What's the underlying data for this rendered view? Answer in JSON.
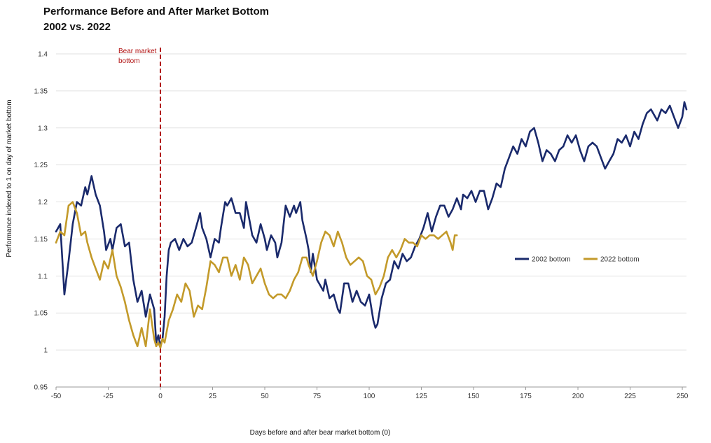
{
  "chart_data": {
    "type": "line",
    "title": "Performance  Before and After Market Bottom",
    "subtitle": "2002 vs. 2022",
    "xlabel": "Days before and after bear market bottom  (0)",
    "ylabel": "Performance indexed to  1 on day of market bottom",
    "xlim": [
      -50,
      252
    ],
    "ylim": [
      0.95,
      1.4
    ],
    "xticks": [
      -50,
      -25,
      0,
      25,
      50,
      75,
      100,
      125,
      150,
      175,
      200,
      225,
      250
    ],
    "yticks": [
      0.95,
      1,
      1.05,
      1.1,
      1.15,
      1.2,
      1.25,
      1.3,
      1.35,
      1.4
    ],
    "ytick_labels": [
      "0.95",
      "1",
      "1.05",
      "1.1",
      "1.15",
      "1.2",
      "1.25",
      "1.3",
      "1.35",
      "1.4"
    ],
    "grid": "horizontal",
    "legend_position": "right",
    "annotation": {
      "x": 0,
      "text_line1": "Bear market",
      "text_line2": "bottom",
      "color": "#b01010"
    },
    "series": [
      {
        "name": "2002 bottom",
        "color": "#1a2a6c",
        "points": [
          [
            -50,
            1.16
          ],
          [
            -48,
            1.17
          ],
          [
            -46,
            1.075
          ],
          [
            -44,
            1.12
          ],
          [
            -42,
            1.17
          ],
          [
            -40,
            1.2
          ],
          [
            -38,
            1.195
          ],
          [
            -36,
            1.22
          ],
          [
            -35,
            1.21
          ],
          [
            -33,
            1.235
          ],
          [
            -31,
            1.21
          ],
          [
            -29,
            1.195
          ],
          [
            -27,
            1.16
          ],
          [
            -26,
            1.135
          ],
          [
            -24,
            1.15
          ],
          [
            -23,
            1.135
          ],
          [
            -21,
            1.165
          ],
          [
            -19,
            1.17
          ],
          [
            -17,
            1.14
          ],
          [
            -15,
            1.145
          ],
          [
            -13,
            1.095
          ],
          [
            -11,
            1.065
          ],
          [
            -9,
            1.08
          ],
          [
            -7,
            1.045
          ],
          [
            -5,
            1.075
          ],
          [
            -3,
            1.055
          ],
          [
            -2,
            1.01
          ],
          [
            -1,
            1.02
          ],
          [
            0,
            1.005
          ],
          [
            1,
            1.015
          ],
          [
            2,
            1.045
          ],
          [
            3,
            1.1
          ],
          [
            4,
            1.135
          ],
          [
            5,
            1.145
          ],
          [
            7,
            1.15
          ],
          [
            9,
            1.135
          ],
          [
            11,
            1.15
          ],
          [
            13,
            1.14
          ],
          [
            15,
            1.145
          ],
          [
            17,
            1.165
          ],
          [
            19,
            1.185
          ],
          [
            20,
            1.165
          ],
          [
            22,
            1.15
          ],
          [
            24,
            1.125
          ],
          [
            26,
            1.15
          ],
          [
            28,
            1.145
          ],
          [
            29,
            1.165
          ],
          [
            31,
            1.2
          ],
          [
            32,
            1.195
          ],
          [
            34,
            1.205
          ],
          [
            36,
            1.185
          ],
          [
            38,
            1.185
          ],
          [
            40,
            1.165
          ],
          [
            41,
            1.2
          ],
          [
            43,
            1.17
          ],
          [
            44,
            1.155
          ],
          [
            46,
            1.145
          ],
          [
            48,
            1.17
          ],
          [
            50,
            1.15
          ],
          [
            51,
            1.135
          ],
          [
            53,
            1.155
          ],
          [
            55,
            1.145
          ],
          [
            56,
            1.125
          ],
          [
            58,
            1.145
          ],
          [
            60,
            1.195
          ],
          [
            62,
            1.18
          ],
          [
            64,
            1.195
          ],
          [
            65,
            1.185
          ],
          [
            67,
            1.2
          ],
          [
            68,
            1.175
          ],
          [
            70,
            1.15
          ],
          [
            71,
            1.135
          ],
          [
            72,
            1.105
          ],
          [
            73,
            1.13
          ],
          [
            75,
            1.095
          ],
          [
            76,
            1.09
          ],
          [
            78,
            1.08
          ],
          [
            79,
            1.095
          ],
          [
            81,
            1.07
          ],
          [
            83,
            1.075
          ],
          [
            85,
            1.055
          ],
          [
            86,
            1.05
          ],
          [
            88,
            1.09
          ],
          [
            90,
            1.09
          ],
          [
            92,
            1.065
          ],
          [
            94,
            1.08
          ],
          [
            96,
            1.065
          ],
          [
            98,
            1.06
          ],
          [
            100,
            1.075
          ],
          [
            102,
            1.04
          ],
          [
            103,
            1.03
          ],
          [
            104,
            1.035
          ],
          [
            106,
            1.07
          ],
          [
            108,
            1.09
          ],
          [
            110,
            1.095
          ],
          [
            112,
            1.12
          ],
          [
            114,
            1.11
          ],
          [
            116,
            1.13
          ],
          [
            118,
            1.12
          ],
          [
            120,
            1.125
          ],
          [
            122,
            1.14
          ],
          [
            124,
            1.15
          ],
          [
            126,
            1.165
          ],
          [
            128,
            1.185
          ],
          [
            130,
            1.16
          ],
          [
            132,
            1.18
          ],
          [
            134,
            1.195
          ],
          [
            136,
            1.195
          ],
          [
            138,
            1.18
          ],
          [
            140,
            1.19
          ],
          [
            142,
            1.205
          ],
          [
            144,
            1.19
          ],
          [
            145,
            1.21
          ],
          [
            147,
            1.205
          ],
          [
            149,
            1.215
          ],
          [
            151,
            1.2
          ],
          [
            153,
            1.215
          ],
          [
            155,
            1.215
          ],
          [
            157,
            1.19
          ],
          [
            159,
            1.205
          ],
          [
            161,
            1.225
          ],
          [
            163,
            1.22
          ],
          [
            165,
            1.245
          ],
          [
            167,
            1.26
          ],
          [
            169,
            1.275
          ],
          [
            171,
            1.265
          ],
          [
            173,
            1.285
          ],
          [
            175,
            1.275
          ],
          [
            177,
            1.295
          ],
          [
            179,
            1.3
          ],
          [
            181,
            1.28
          ],
          [
            183,
            1.255
          ],
          [
            185,
            1.27
          ],
          [
            187,
            1.265
          ],
          [
            189,
            1.255
          ],
          [
            191,
            1.27
          ],
          [
            193,
            1.275
          ],
          [
            195,
            1.29
          ],
          [
            197,
            1.28
          ],
          [
            199,
            1.29
          ],
          [
            201,
            1.27
          ],
          [
            203,
            1.255
          ],
          [
            205,
            1.275
          ],
          [
            207,
            1.28
          ],
          [
            209,
            1.275
          ],
          [
            211,
            1.26
          ],
          [
            213,
            1.245
          ],
          [
            215,
            1.255
          ],
          [
            217,
            1.265
          ],
          [
            219,
            1.285
          ],
          [
            221,
            1.28
          ],
          [
            223,
            1.29
          ],
          [
            225,
            1.275
          ],
          [
            227,
            1.295
          ],
          [
            229,
            1.285
          ],
          [
            231,
            1.305
          ],
          [
            233,
            1.32
          ],
          [
            235,
            1.325
          ],
          [
            237,
            1.315
          ],
          [
            238,
            1.31
          ],
          [
            240,
            1.325
          ],
          [
            242,
            1.32
          ],
          [
            244,
            1.33
          ],
          [
            246,
            1.315
          ],
          [
            248,
            1.3
          ],
          [
            250,
            1.315
          ],
          [
            251,
            1.335
          ],
          [
            252,
            1.325
          ]
        ]
      },
      {
        "name": "2022 bottom",
        "color": "#c39a2a",
        "points": [
          [
            -50,
            1.145
          ],
          [
            -48,
            1.16
          ],
          [
            -46,
            1.155
          ],
          [
            -44,
            1.195
          ],
          [
            -42,
            1.2
          ],
          [
            -40,
            1.185
          ],
          [
            -38,
            1.155
          ],
          [
            -36,
            1.16
          ],
          [
            -35,
            1.145
          ],
          [
            -33,
            1.125
          ],
          [
            -31,
            1.11
          ],
          [
            -29,
            1.095
          ],
          [
            -27,
            1.12
          ],
          [
            -25,
            1.11
          ],
          [
            -23,
            1.135
          ],
          [
            -21,
            1.1
          ],
          [
            -19,
            1.085
          ],
          [
            -17,
            1.065
          ],
          [
            -15,
            1.04
          ],
          [
            -13,
            1.02
          ],
          [
            -11,
            1.005
          ],
          [
            -9,
            1.03
          ],
          [
            -7,
            1.005
          ],
          [
            -5,
            1.055
          ],
          [
            -4,
            1.035
          ],
          [
            -3,
            1.015
          ],
          [
            -2,
            1.005
          ],
          [
            -1,
            1.01
          ],
          [
            0,
            1.003
          ],
          [
            1,
            1.015
          ],
          [
            2,
            1.01
          ],
          [
            4,
            1.04
          ],
          [
            6,
            1.055
          ],
          [
            8,
            1.075
          ],
          [
            10,
            1.065
          ],
          [
            12,
            1.09
          ],
          [
            14,
            1.08
          ],
          [
            16,
            1.045
          ],
          [
            18,
            1.06
          ],
          [
            20,
            1.055
          ],
          [
            22,
            1.085
          ],
          [
            24,
            1.12
          ],
          [
            26,
            1.115
          ],
          [
            28,
            1.105
          ],
          [
            30,
            1.125
          ],
          [
            32,
            1.125
          ],
          [
            34,
            1.1
          ],
          [
            36,
            1.115
          ],
          [
            38,
            1.095
          ],
          [
            40,
            1.125
          ],
          [
            42,
            1.115
          ],
          [
            44,
            1.09
          ],
          [
            46,
            1.1
          ],
          [
            48,
            1.11
          ],
          [
            50,
            1.09
          ],
          [
            52,
            1.075
          ],
          [
            54,
            1.07
          ],
          [
            56,
            1.075
          ],
          [
            58,
            1.075
          ],
          [
            60,
            1.07
          ],
          [
            62,
            1.08
          ],
          [
            64,
            1.095
          ],
          [
            66,
            1.105
          ],
          [
            68,
            1.125
          ],
          [
            70,
            1.125
          ],
          [
            71,
            1.115
          ],
          [
            73,
            1.1
          ],
          [
            75,
            1.12
          ],
          [
            77,
            1.145
          ],
          [
            79,
            1.16
          ],
          [
            81,
            1.155
          ],
          [
            83,
            1.14
          ],
          [
            85,
            1.16
          ],
          [
            87,
            1.145
          ],
          [
            89,
            1.125
          ],
          [
            91,
            1.115
          ],
          [
            93,
            1.12
          ],
          [
            95,
            1.125
          ],
          [
            97,
            1.12
          ],
          [
            99,
            1.1
          ],
          [
            101,
            1.095
          ],
          [
            103,
            1.075
          ],
          [
            105,
            1.085
          ],
          [
            107,
            1.1
          ],
          [
            109,
            1.125
          ],
          [
            111,
            1.135
          ],
          [
            113,
            1.125
          ],
          [
            115,
            1.135
          ],
          [
            117,
            1.15
          ],
          [
            119,
            1.145
          ],
          [
            121,
            1.145
          ],
          [
            123,
            1.14
          ],
          [
            125,
            1.155
          ],
          [
            127,
            1.15
          ],
          [
            129,
            1.155
          ],
          [
            131,
            1.155
          ],
          [
            133,
            1.15
          ],
          [
            135,
            1.155
          ],
          [
            137,
            1.16
          ],
          [
            139,
            1.145
          ],
          [
            140,
            1.135
          ],
          [
            141,
            1.155
          ],
          [
            142,
            1.155
          ]
        ]
      }
    ]
  }
}
